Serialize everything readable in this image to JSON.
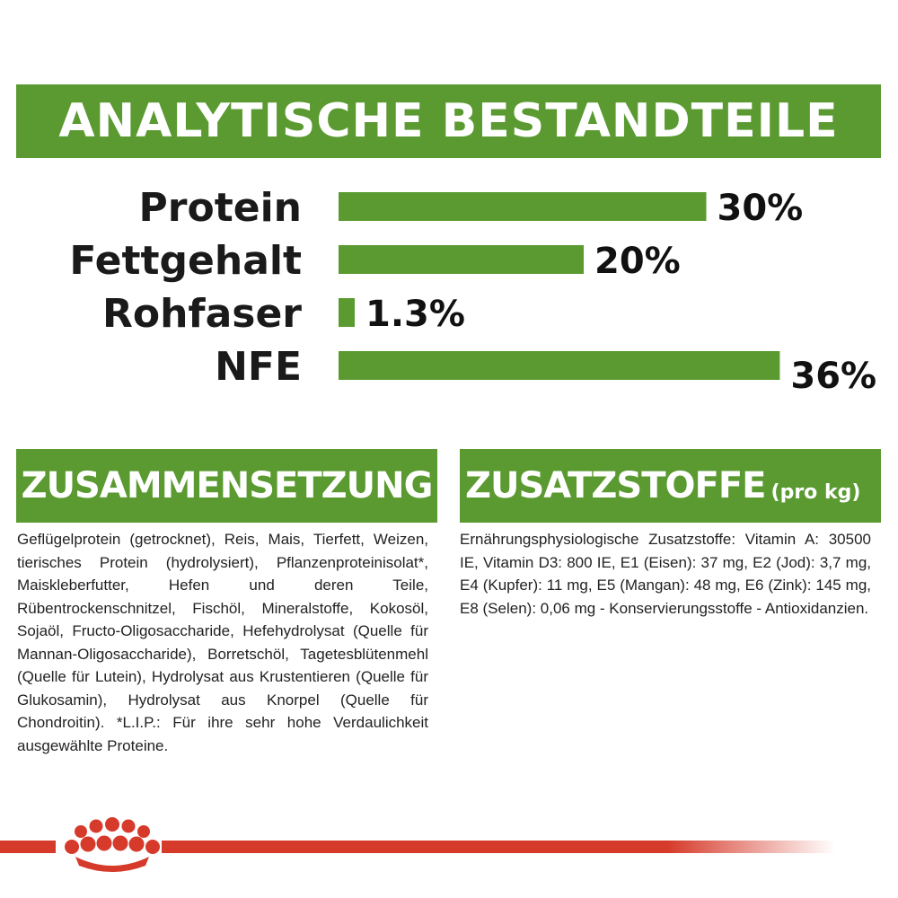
{
  "title": "ANALYTISCHE BESTANDTEILE",
  "colors": {
    "accent_green": "#5a9a30",
    "footer_red": "#d63a2a"
  },
  "chart_data": {
    "type": "bar",
    "orientation": "horizontal",
    "categories": [
      "Protein",
      "Fettgehalt",
      "Rohfaser",
      "NFE"
    ],
    "values": [
      30,
      20,
      1.3,
      36
    ],
    "value_labels": [
      "30%",
      "20%",
      "1.3%",
      "36%"
    ],
    "unit": "%"
  },
  "composition": {
    "heading": "ZUSAMMENSETZUNG",
    "text": "Geflügelprotein (getrocknet), Reis, Mais, Tierfett, Weizen, tierisches Protein (hydrolysiert), Pflanzenproteinisolat*, Maiskleberfutter, Hefen und deren Teile, Rübentrockenschnitzel, Fischöl, Mineralstoffe, Kokosöl, Sojaöl, Fructo-Oligosaccharide, Hefehydrolysat (Quelle für Mannan-Oligosaccharide), Borretschöl, Tagetesblütenmehl (Quelle für Lutein), Hydrolysat aus Krustentieren (Quelle für Glukosamin), Hydrolysat aus Knorpel (Quelle für Chondroitin). *L.I.P.: Für ihre sehr hohe Verdaulichkeit ausgewählte Proteine."
  },
  "additives": {
    "heading": "ZUSATZSTOFFE",
    "heading_sub": "(pro kg)",
    "text": "Ernährungsphysiologische Zusatzstoffe: Vitamin A: 30500 IE, Vitamin D3: 800 IE, E1 (Eisen): 37 mg, E2 (Jod): 3,7 mg, E4 (Kupfer): 11 mg, E5 (Mangan): 48 mg, E6 (Zink): 145 mg, E8 (Selen): 0,06 mg - Konservierungsstoffe - Antioxidanzien."
  },
  "footer": {
    "logo_icon": "crown-logo-icon"
  }
}
